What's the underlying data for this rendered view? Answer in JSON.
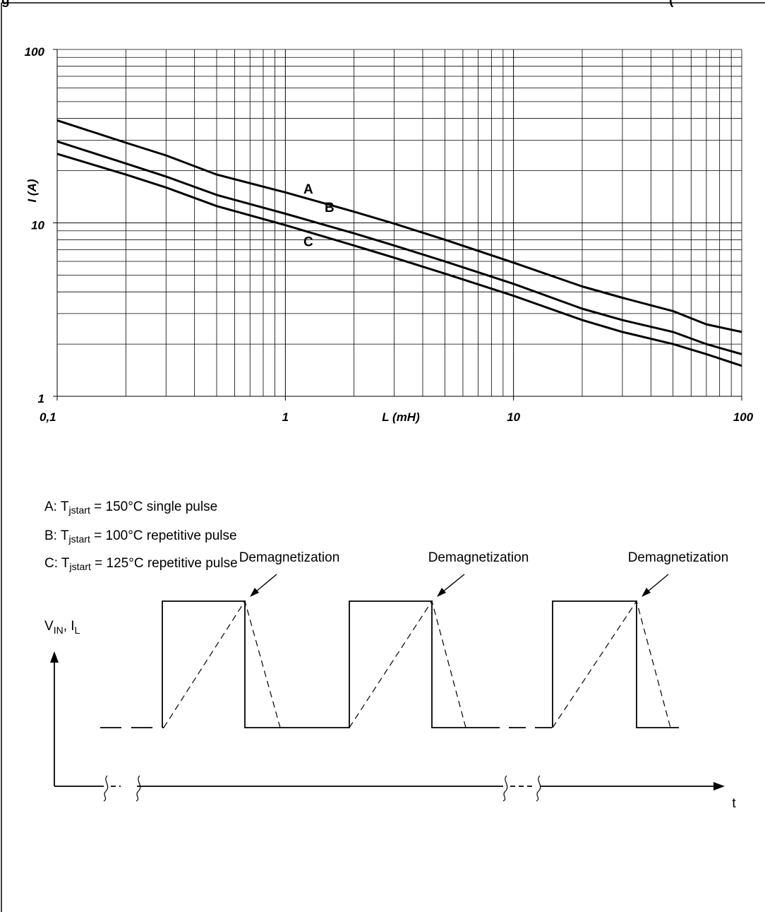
{
  "heading_visible": "g",
  "heading_right": "(",
  "chart_data": {
    "type": "line",
    "x_scale": "log",
    "y_scale": "log",
    "xlim": [
      0.1,
      100
    ],
    "ylim": [
      1,
      100
    ],
    "grid": true,
    "xlabel": "L (mH)",
    "ylabel": "I (A)",
    "x_tick_labels": [
      {
        "value": 0.1,
        "label": "0,1"
      },
      {
        "value": 1,
        "label": "1"
      },
      {
        "value": 10,
        "label": "10"
      },
      {
        "value": 100,
        "label": "100"
      }
    ],
    "y_tick_labels": [
      {
        "value": 1,
        "label": "1"
      },
      {
        "value": 10,
        "label": "10"
      },
      {
        "value": 100,
        "label": "100"
      }
    ],
    "series": [
      {
        "name": "A",
        "x": [
          0.1,
          0.2,
          0.3,
          0.5,
          1,
          2,
          3,
          5,
          10,
          20,
          30,
          50,
          70,
          100
        ],
        "y": [
          39,
          29,
          24.5,
          19,
          15,
          11.6,
          9.9,
          8,
          5.9,
          4.3,
          3.7,
          3.1,
          2.6,
          2.35
        ]
      },
      {
        "name": "B",
        "x": [
          0.1,
          0.2,
          0.3,
          0.5,
          1,
          2,
          3,
          5,
          10,
          20,
          30,
          50,
          70,
          100
        ],
        "y": [
          29.5,
          22,
          18.5,
          14.5,
          11.3,
          8.7,
          7.4,
          6,
          4.45,
          3.2,
          2.75,
          2.35,
          2,
          1.75
        ]
      },
      {
        "name": "C",
        "x": [
          0.1,
          0.2,
          0.3,
          0.5,
          1,
          2,
          3,
          5,
          10,
          20,
          30,
          50,
          70,
          100
        ],
        "y": [
          25,
          19,
          16,
          12.5,
          9.7,
          7.4,
          6.3,
          5.1,
          3.8,
          2.75,
          2.35,
          2,
          1.75,
          1.5
        ]
      }
    ]
  },
  "curve_legend": [
    {
      "prefix": "A: T",
      "sub": "jstart",
      "text": " = 150°C single pulse"
    },
    {
      "prefix": "B: T",
      "sub": "jstart",
      "text": " = 100°C repetitive pulse"
    },
    {
      "prefix": "C: T",
      "sub": "jstart",
      "text": " = 125°C repetitive pulse"
    }
  ],
  "diagram": {
    "y_label": {
      "v": "V",
      "v_sub": "IN",
      "sep": ", I",
      "i_sub": "L"
    },
    "x_label": "t",
    "annotations": [
      "Demagnetization",
      "Demagnetization",
      "Demagnetization"
    ]
  }
}
